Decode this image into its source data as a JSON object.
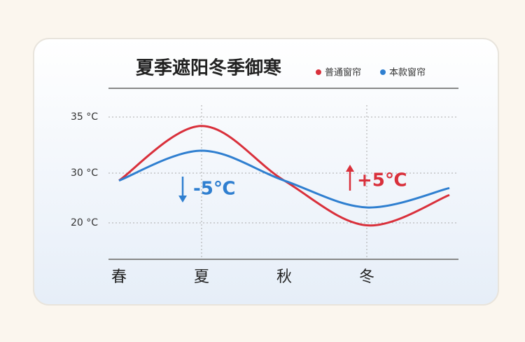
{
  "chart_data": {
    "type": "line",
    "title": "夏季遮阳冬季御寒",
    "categories": [
      "春",
      "夏",
      "秋",
      "冬",
      null
    ],
    "series": [
      {
        "name": "普通窗帘",
        "color": "#d9303b",
        "values": [
          28.5,
          34.2,
          28.5,
          19.5,
          25.6
        ]
      },
      {
        "name": "本款窗帘",
        "color": "#2f7fd0",
        "values": [
          28.5,
          32,
          28.5,
          23.1,
          27
        ]
      }
    ],
    "yticks": [
      {
        "value": 35,
        "label": "35 °C"
      },
      {
        "value": 30,
        "label": "30 °C"
      },
      {
        "value": 20,
        "label": "20 °C"
      }
    ],
    "grid": true,
    "annotations": [
      {
        "text": "-5℃",
        "color": "#2f7fd0"
      },
      {
        "text": "+5℃",
        "color": "#d9303b"
      }
    ]
  }
}
